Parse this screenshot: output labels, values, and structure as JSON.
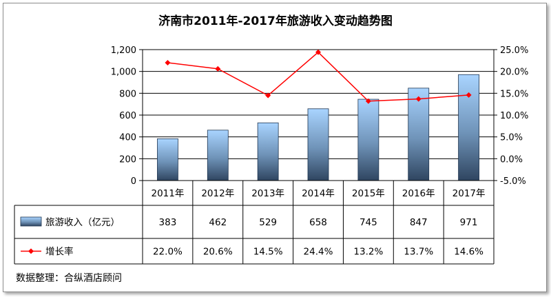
{
  "title": "济南市2011年-2017年旅游收入变动趋势图",
  "source": "数据整理：合纵酒店顾问",
  "chart_data": {
    "type": "bar",
    "title": "济南市2011年-2017年旅游收入变动趋势图",
    "categories": [
      "2011年",
      "2012年",
      "2013年",
      "2014年",
      "2015年",
      "2016年",
      "2017年"
    ],
    "series": [
      {
        "name": "旅游收入（亿元）",
        "type": "bar",
        "axis": "left",
        "values": [
          383,
          462,
          529,
          658,
          745,
          847,
          971
        ],
        "labels": [
          "383",
          "462",
          "529",
          "658",
          "745",
          "847",
          "971"
        ]
      },
      {
        "name": "增长率",
        "type": "line",
        "axis": "right",
        "values": [
          22.0,
          20.6,
          14.5,
          24.4,
          13.2,
          13.7,
          14.6
        ],
        "labels": [
          "22.0%",
          "20.6%",
          "14.5%",
          "24.4%",
          "13.2%",
          "13.7%",
          "14.6%"
        ]
      }
    ],
    "ylim_left": [
      0,
      1200
    ],
    "yticks_left": [
      "0",
      "200",
      "400",
      "600",
      "800",
      "1,000",
      "1,200"
    ],
    "ylim_right": [
      -5,
      25
    ],
    "yticks_right": [
      "-5.0%",
      "0.0%",
      "5.0%",
      "10.0%",
      "15.0%",
      "20.0%",
      "25.0%"
    ],
    "grid": true,
    "legend": "data-table",
    "colors": {
      "bar_top": "#a9d4ff",
      "bar_bottom": "#2f4560",
      "line": "#ff0000"
    }
  }
}
